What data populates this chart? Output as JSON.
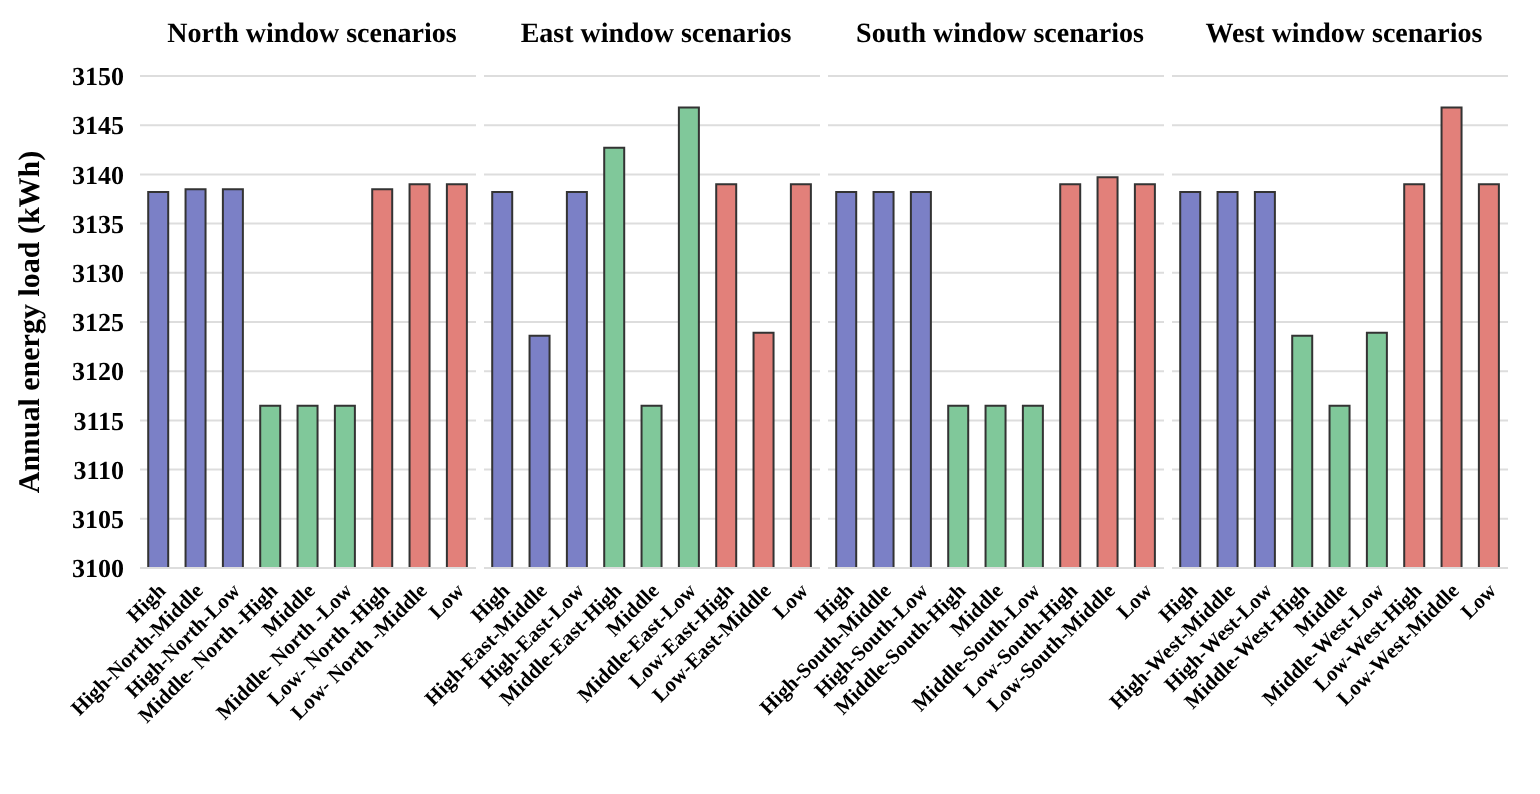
{
  "chart_data": [
    {
      "type": "bar",
      "title": "North window scenarios",
      "ylabel": "Annual energy load (kWh)",
      "categories": [
        "High",
        "High-North-Middle",
        "High-North-Low",
        "Middle- North -High",
        "Middle",
        "Middle- North -Low",
        "Low- North -High",
        "Low- North -Middle",
        "Low"
      ],
      "values": [
        3138.2,
        3138.5,
        3138.5,
        3116.5,
        3116.5,
        3116.5,
        3138.5,
        3139,
        3139
      ],
      "colors": [
        "#7b80c6",
        "#7b80c6",
        "#7b80c6",
        "#80c89a",
        "#80c89a",
        "#80c89a",
        "#e2807a",
        "#e2807a",
        "#e2807a"
      ],
      "ylim": [
        3100,
        3150
      ],
      "yticks": [
        3100,
        3105,
        3110,
        3115,
        3120,
        3125,
        3130,
        3135,
        3140,
        3145,
        3150
      ],
      "grid": "y"
    },
    {
      "type": "bar",
      "title": "East window scenarios",
      "categories": [
        "High",
        "High-East-Middle",
        "High-East-Low",
        "Middle-East-High",
        "Middle",
        "Middle-East-Low",
        "Low-East-High",
        "Low-East-Middle",
        "Low"
      ],
      "values": [
        3138.2,
        3123.6,
        3138.2,
        3142.7,
        3116.5,
        3146.8,
        3139,
        3123.9,
        3139
      ],
      "colors": [
        "#7b80c6",
        "#7b80c6",
        "#7b80c6",
        "#80c89a",
        "#80c89a",
        "#80c89a",
        "#e2807a",
        "#e2807a",
        "#e2807a"
      ],
      "ylim": [
        3100,
        3150
      ],
      "yticks": [
        3100,
        3105,
        3110,
        3115,
        3120,
        3125,
        3130,
        3135,
        3140,
        3145,
        3150
      ],
      "grid": "y",
      "tick_labels": "x"
    },
    {
      "type": "bar",
      "title": "South window scenarios",
      "categories": [
        "High",
        "High-South-Middle",
        "High-South-Low",
        "Middle-South-High",
        "Middle",
        "Middle-South-Low",
        "Low-South-High",
        "Low-South-Middle",
        "Low"
      ],
      "values": [
        3138.2,
        3138.2,
        3138.2,
        3116.5,
        3116.5,
        3116.5,
        3139,
        3139.7,
        3139
      ],
      "colors": [
        "#7b80c6",
        "#7b80c6",
        "#7b80c6",
        "#80c89a",
        "#80c89a",
        "#80c89a",
        "#e2807a",
        "#e2807a",
        "#e2807a"
      ],
      "ylim": [
        3100,
        3150
      ],
      "yticks": [
        3100,
        3105,
        3110,
        3115,
        3120,
        3125,
        3130,
        3135,
        3140,
        3145,
        3150
      ],
      "grid": "y",
      "tick_labels": "x"
    },
    {
      "type": "bar",
      "title": "West window scenarios",
      "categories": [
        "High",
        "High-West-Middle",
        "High-West-Low",
        "Middle-West-High",
        "Middle",
        "Middle-West-Low",
        "Low-West-High",
        "Low-West-Middle",
        "Low"
      ],
      "values": [
        3138.2,
        3138.2,
        3138.2,
        3123.6,
        3116.5,
        3123.9,
        3139,
        3146.8,
        3139
      ],
      "colors": [
        "#7b80c6",
        "#7b80c6",
        "#7b80c6",
        "#80c89a",
        "#80c89a",
        "#80c89a",
        "#e2807a",
        "#e2807a",
        "#e2807a"
      ],
      "ylim": [
        3100,
        3150
      ],
      "yticks": [
        3100,
        3105,
        3110,
        3115,
        3120,
        3125,
        3130,
        3135,
        3140,
        3145,
        3150
      ],
      "grid": "y",
      "tick_labels": "x"
    }
  ]
}
